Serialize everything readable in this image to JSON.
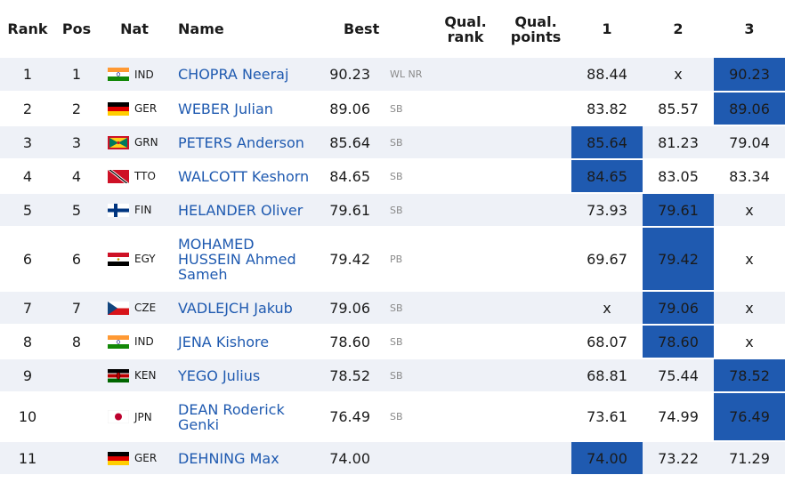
{
  "headers": {
    "rank": "Rank",
    "pos": "Pos",
    "nat": "Nat",
    "name": "Name",
    "best": "Best",
    "qual_rank": "Qual. rank",
    "qual_points": "Qual. points",
    "r1": "1",
    "r2": "2",
    "r3": "3"
  },
  "rows": [
    {
      "rank": "1",
      "pos": "1",
      "flag": "flag-india-icon",
      "nat": "IND",
      "name": "CHOPRA Neeraj",
      "best": "90.23",
      "note": "WL NR",
      "r1": "88.44",
      "r2": "x",
      "r3": "90.23",
      "hl": "r3"
    },
    {
      "rank": "2",
      "pos": "2",
      "flag": "flag-germany-icon",
      "nat": "GER",
      "name": "WEBER Julian",
      "best": "89.06",
      "note": "SB",
      "r1": "83.82",
      "r2": "85.57",
      "r3": "89.06",
      "hl": "r3"
    },
    {
      "rank": "3",
      "pos": "3",
      "flag": "flag-grenada-icon",
      "nat": "GRN",
      "name": "PETERS Anderson",
      "best": "85.64",
      "note": "SB",
      "r1": "85.64",
      "r2": "81.23",
      "r3": "79.04",
      "hl": "r1"
    },
    {
      "rank": "4",
      "pos": "4",
      "flag": "flag-trinidad-icon",
      "nat": "TTO",
      "name": "WALCOTT Keshorn",
      "best": "84.65",
      "note": "SB",
      "r1": "84.65",
      "r2": "83.05",
      "r3": "83.34",
      "hl": "r1"
    },
    {
      "rank": "5",
      "pos": "5",
      "flag": "flag-finland-icon",
      "nat": "FIN",
      "name": "HELANDER Oliver",
      "best": "79.61",
      "note": "SB",
      "r1": "73.93",
      "r2": "79.61",
      "r3": "x",
      "hl": "r2"
    },
    {
      "rank": "6",
      "pos": "6",
      "flag": "flag-egypt-icon",
      "nat": "EGY",
      "name": "MOHAMED HUSSEIN Ahmed Sameh",
      "best": "79.42",
      "note": "PB",
      "r1": "69.67",
      "r2": "79.42",
      "r3": "x",
      "hl": "r2"
    },
    {
      "rank": "7",
      "pos": "7",
      "flag": "flag-czech-icon",
      "nat": "CZE",
      "name": "VADLEJCH Jakub",
      "best": "79.06",
      "note": "SB",
      "r1": "x",
      "r2": "79.06",
      "r3": "x",
      "hl": "r2"
    },
    {
      "rank": "8",
      "pos": "8",
      "flag": "flag-india-icon",
      "nat": "IND",
      "name": "JENA Kishore",
      "best": "78.60",
      "note": "SB",
      "r1": "68.07",
      "r2": "78.60",
      "r3": "x",
      "hl": "r2"
    },
    {
      "rank": "9",
      "pos": "",
      "flag": "flag-kenya-icon",
      "nat": "KEN",
      "name": "YEGO Julius",
      "best": "78.52",
      "note": "SB",
      "r1": "68.81",
      "r2": "75.44",
      "r3": "78.52",
      "hl": "r3"
    },
    {
      "rank": "10",
      "pos": "",
      "flag": "flag-japan-icon",
      "nat": "JPN",
      "name": "DEAN Roderick Genki",
      "best": "76.49",
      "note": "SB",
      "r1": "73.61",
      "r2": "74.99",
      "r3": "76.49",
      "hl": "r3"
    },
    {
      "rank": "11",
      "pos": "",
      "flag": "flag-germany-icon",
      "nat": "GER",
      "name": "DEHNING Max",
      "best": "74.00",
      "note": "",
      "r1": "74.00",
      "r2": "73.22",
      "r3": "71.29",
      "hl": "r1"
    }
  ],
  "colors": {
    "highlight": "#1f5ab0",
    "row_alt": "#eef1f7",
    "link": "#1f5ab0"
  }
}
